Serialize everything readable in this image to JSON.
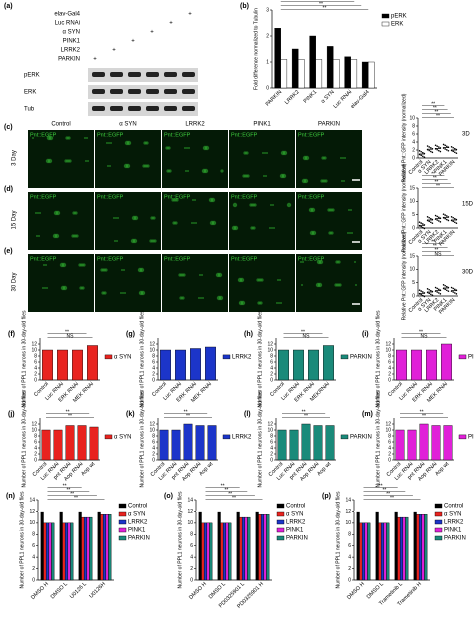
{
  "blot": {
    "label": "(a)",
    "rows": [
      "elav-Gal4",
      "Luc RNAi",
      "α SYN",
      "PINK1",
      "LRRK2",
      "PARKIN"
    ],
    "plus": "+",
    "bands": [
      "pERK",
      "ERK",
      "Tub"
    ]
  },
  "micrographs": {
    "labels": [
      "(c)",
      "(d)",
      "(e)"
    ],
    "columns": [
      "Control",
      "α SYN",
      "LRRK2",
      "PINK1",
      "PARKIN"
    ],
    "rows": [
      "3 Day",
      "15 Day",
      "30 Day"
    ],
    "image_label": "Pnt::EGFP"
  },
  "chart_data": [
    {
      "type": "bar",
      "label": "(b)",
      "y_label": "Fold difference normalized to Tubulin",
      "categories": [
        "PARKIN",
        "LRRK2",
        "PINK1",
        "α SYN",
        "Luc RNAi",
        "elav-Gal4"
      ],
      "series": [
        {
          "name": "pERK",
          "color": "#000000",
          "values": [
            2.3,
            1.5,
            2.0,
            1.6,
            1.2,
            1.0
          ]
        },
        {
          "name": "ERK",
          "color": "#ffffff",
          "values": [
            1.1,
            1.1,
            1.1,
            1.1,
            1.1,
            1.0
          ]
        }
      ],
      "ylim": [
        0,
        3
      ],
      "yticks": [
        0,
        1,
        2,
        3
      ],
      "annotations": [
        "**",
        "**",
        "**",
        "**"
      ]
    },
    {
      "type": "strip",
      "label": "3D",
      "y_label": "Relative Pnt::GFP intensity (normalized)",
      "categories": [
        "Control",
        "α SYN",
        "LRRK2",
        "PINK1",
        "PARKIN"
      ],
      "values": [
        1,
        2.2,
        2.4,
        2.6,
        2
      ],
      "color": "#000000",
      "ylim": [
        0,
        10
      ],
      "yticks": [
        0,
        2,
        4,
        6,
        8,
        10
      ],
      "annotations": [
        "**",
        "**",
        "**",
        "**"
      ]
    },
    {
      "type": "strip",
      "label": "15D",
      "y_label": "Relative Pnt::GFP intensity (normalized)",
      "categories": [
        "Control",
        "α SYN",
        "LRRK2",
        "PINK1",
        "PARKIN"
      ],
      "values": [
        1,
        3,
        3.5,
        4,
        3
      ],
      "color": "#000000",
      "ylim": [
        0,
        15
      ],
      "yticks": [
        0,
        5,
        10,
        15
      ],
      "annotations": [
        "**",
        "**",
        "**",
        "**"
      ]
    },
    {
      "type": "strip",
      "label": "30D",
      "y_label": "Relative Pnt::GFP intensity (normalized)",
      "categories": [
        "Control",
        "α SYN",
        "LRRK2",
        "PINK1",
        "PARKIN"
      ],
      "values": [
        1,
        1.5,
        2,
        3,
        2
      ],
      "color": "#000000",
      "ylim": [
        0,
        15
      ],
      "yticks": [
        0,
        5,
        10,
        15
      ],
      "annotations": [
        "NS",
        "**",
        "**",
        "**"
      ]
    },
    {
      "type": "bar",
      "label": "(f)",
      "y_label": "Number of PPL1 neurons in 30-day-old flies",
      "categories": [
        "Control",
        "Luc RNAi",
        "ERK RNAi",
        "MEK RNAi"
      ],
      "series": [
        {
          "name": "α SYN",
          "color": "#e8231f",
          "values": [
            10,
            10,
            10,
            11.5
          ]
        }
      ],
      "ylim": [
        0,
        14
      ],
      "yticks": [
        0,
        2,
        4,
        6,
        8,
        10,
        12
      ],
      "annotations": [
        "NS",
        "**"
      ]
    },
    {
      "type": "bar",
      "label": "(g)",
      "y_label": "Number of PPL1 neurons in 30-day-old flies",
      "categories": [
        "Control",
        "Luc RNAi",
        "ERK RNAi",
        "MEK RNAi"
      ],
      "series": [
        {
          "name": "LRRK2",
          "color": "#1c35c9",
          "values": [
            10,
            10,
            10.5,
            11
          ]
        }
      ],
      "ylim": [
        0,
        14
      ],
      "yticks": [
        0,
        2,
        4,
        6,
        8,
        10,
        12
      ],
      "annotations": []
    },
    {
      "type": "bar",
      "label": "(h)",
      "y_label": "Number of PPL1 neurons in 30-day-old flies",
      "categories": [
        "Control",
        "Luc RNAi",
        "ERK RNAi",
        "MEKRNAi"
      ],
      "series": [
        {
          "name": "PARKIN",
          "color": "#1a8a7a",
          "values": [
            10,
            10,
            10,
            11.5
          ]
        }
      ],
      "ylim": [
        0,
        14
      ],
      "yticks": [
        0,
        2,
        4,
        6,
        8,
        10,
        12
      ],
      "annotations": [
        "NS",
        "**"
      ]
    },
    {
      "type": "bar",
      "label": "(i)",
      "y_label": "Number of PPL1 neurons in 30-day-old flies",
      "categories": [
        "Control",
        "Luc RNAi",
        "ERK RNAi",
        "MEK RNAi"
      ],
      "series": [
        {
          "name": "PINK1",
          "color": "#e020d8",
          "values": [
            10,
            10,
            10,
            12
          ]
        }
      ],
      "ylim": [
        0,
        14
      ],
      "yticks": [
        0,
        2,
        4,
        6,
        8,
        10,
        12
      ],
      "annotations": [
        "NS",
        "**"
      ]
    },
    {
      "type": "bar",
      "label": "(j)",
      "y_label": "Number of PPL1 neurons in 30-day-old flies",
      "categories": [
        "Control",
        "Luc RNAi",
        "pnt RNAi",
        "Aop RNAi",
        "Aop wt"
      ],
      "series": [
        {
          "name": "α SYN",
          "color": "#e8231f",
          "values": [
            10,
            10,
            11.5,
            11.5,
            11
          ]
        }
      ],
      "ylim": [
        0,
        14
      ],
      "yticks": [
        0,
        2,
        4,
        6,
        8,
        10,
        12
      ],
      "annotations": [
        "**",
        "**"
      ]
    },
    {
      "type": "bar",
      "label": "(k)",
      "y_label": "Number of PPL1 neurons in 30-day-old flies",
      "categories": [
        "Control",
        "Luc RNAi",
        "pnt RNAi",
        "Aop RNAi",
        "Aop wt"
      ],
      "series": [
        {
          "name": "LRRK2",
          "color": "#1c35c9",
          "values": [
            10,
            10,
            12,
            11.5,
            11.5
          ]
        }
      ],
      "ylim": [
        0,
        14
      ],
      "yticks": [
        0,
        2,
        4,
        6,
        8,
        10,
        12
      ],
      "annotations": [
        "**",
        "**"
      ]
    },
    {
      "type": "bar",
      "label": "(l)",
      "y_label": "Number of PPL1 neurons in 30-day-old flies",
      "categories": [
        "Control",
        "Luc RNAi",
        "pnt RNAi",
        "Aop RNAi",
        "Aop wt"
      ],
      "series": [
        {
          "name": "PARKIN",
          "color": "#1a8a7a",
          "values": [
            10,
            10,
            12,
            11.5,
            11.5
          ]
        }
      ],
      "ylim": [
        0,
        14
      ],
      "yticks": [
        0,
        2,
        4,
        6,
        8,
        10,
        12
      ],
      "annotations": [
        "**",
        "**"
      ]
    },
    {
      "type": "bar",
      "label": "(m)",
      "y_label": "Number of PPL1 neurons in 30-day-old flies",
      "categories": [
        "Control",
        "Luc RNAi",
        "pnt RNAi",
        "Aop RNAi",
        "Aop wt"
      ],
      "series": [
        {
          "name": "PINK1",
          "color": "#e020d8",
          "values": [
            10,
            10,
            12,
            11.5,
            11.5
          ]
        }
      ],
      "ylim": [
        0,
        14
      ],
      "yticks": [
        0,
        2,
        4,
        6,
        8,
        10,
        12
      ],
      "annotations": [
        "**",
        "**"
      ]
    },
    {
      "type": "bar",
      "label": "(n)",
      "y_label": "Number of PPL1 neurons in 30-day-old flies",
      "categories": [
        "DMSO H",
        "DMSO L",
        "U0126 L",
        "U0126H"
      ],
      "series": [
        {
          "name": "Control",
          "color": "#000000",
          "values": [
            12,
            12,
            12,
            12
          ]
        },
        {
          "name": "α SYN",
          "color": "#e8231f",
          "values": [
            10,
            10,
            11,
            11.5
          ]
        },
        {
          "name": "LRRK2",
          "color": "#1c35c9",
          "values": [
            10,
            10,
            11,
            11.5
          ]
        },
        {
          "name": "PINK1",
          "color": "#e020d8",
          "values": [
            10,
            10,
            11,
            11.5
          ]
        },
        {
          "name": "PARKIN",
          "color": "#1a8a7a",
          "values": [
            10,
            10,
            11,
            11.5
          ]
        }
      ],
      "ylim": [
        0,
        14
      ],
      "yticks": [
        0,
        2,
        4,
        6,
        8,
        10,
        12,
        14
      ],
      "annotations": [
        "**",
        "**",
        "**",
        "**"
      ]
    },
    {
      "type": "bar",
      "label": "(o)",
      "y_label": "Number of PPL1 neurons in 30-day-old flies",
      "categories": [
        "DMSO H",
        "DMSO L",
        "PD0325901 L",
        "PD0325901 H"
      ],
      "series": [
        {
          "name": "Control",
          "color": "#000000",
          "values": [
            12,
            12,
            12,
            12
          ]
        },
        {
          "name": "α SYN",
          "color": "#e8231f",
          "values": [
            10,
            10,
            11,
            11.5
          ]
        },
        {
          "name": "LRRK2",
          "color": "#1c35c9",
          "values": [
            10,
            10,
            11,
            11.5
          ]
        },
        {
          "name": "PINK1",
          "color": "#e020d8",
          "values": [
            10,
            10,
            11,
            11.5
          ]
        },
        {
          "name": "PARKIN",
          "color": "#1a8a7a",
          "values": [
            10,
            10,
            11,
            11.5
          ]
        }
      ],
      "ylim": [
        0,
        14
      ],
      "yticks": [
        0,
        2,
        4,
        6,
        8,
        10,
        12,
        14
      ],
      "annotations": [
        "**",
        "**",
        "**",
        "**"
      ]
    },
    {
      "type": "bar",
      "label": "(p)",
      "y_label": "Number of PPL1 neurons in 30-day-old flies",
      "categories": [
        "DMSO H",
        "DMSO L",
        "Trametinib L",
        "Trametinib H"
      ],
      "series": [
        {
          "name": "Control",
          "color": "#000000",
          "values": [
            12,
            12,
            12,
            12
          ]
        },
        {
          "name": "α SYN",
          "color": "#e8231f",
          "values": [
            10,
            10,
            11,
            11.5
          ]
        },
        {
          "name": "LRRK2",
          "color": "#1c35c9",
          "values": [
            10,
            10,
            11,
            11.5
          ]
        },
        {
          "name": "PINK1",
          "color": "#e020d8",
          "values": [
            10,
            10,
            11,
            11.5
          ]
        },
        {
          "name": "PARKIN",
          "color": "#1a8a7a",
          "values": [
            10,
            10,
            11,
            11.5
          ]
        }
      ],
      "ylim": [
        0,
        14
      ],
      "yticks": [
        0,
        2,
        4,
        6,
        8,
        10,
        12,
        14
      ],
      "annotations": [
        "**",
        "**",
        "**",
        "**"
      ]
    }
  ]
}
